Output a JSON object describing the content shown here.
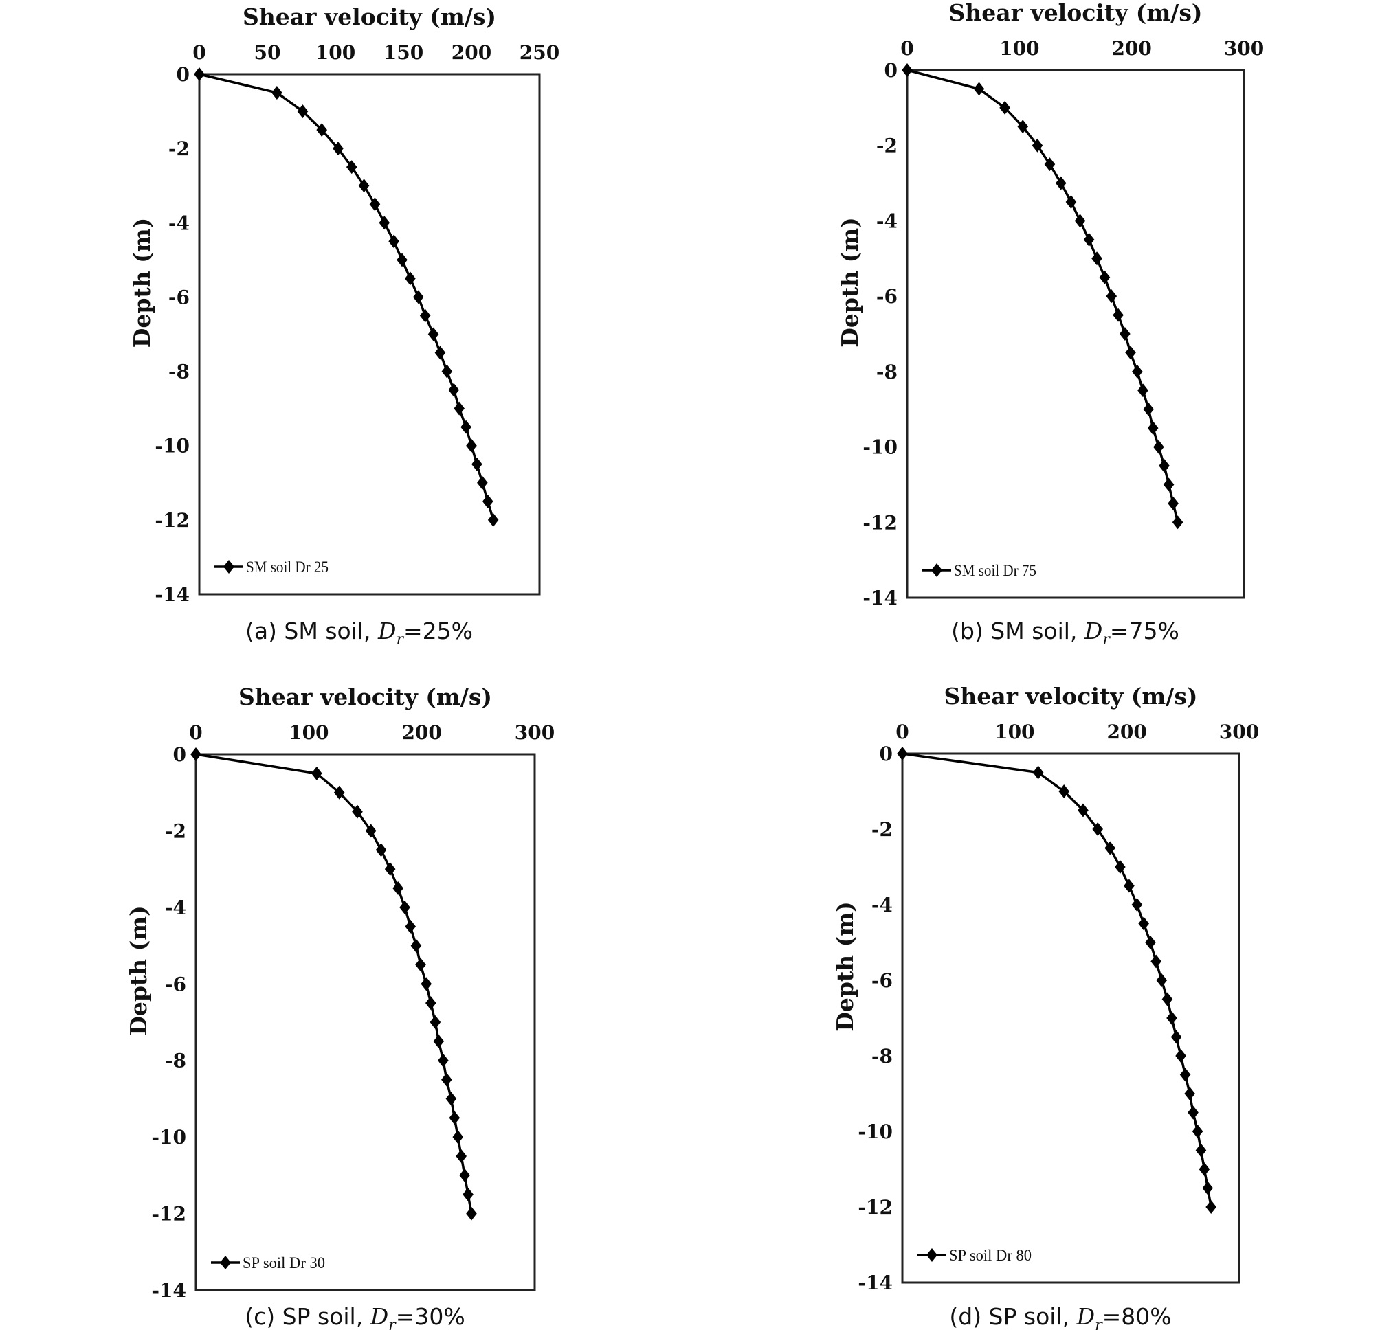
{
  "chart_data": [
    {
      "type": "line",
      "title": "",
      "xlabel": "Shear velocity (m/s)",
      "ylabel": "Depth (m)",
      "xlim": [
        0,
        250
      ],
      "ylim": [
        -14,
        0
      ],
      "xticks": [
        0,
        50,
        100,
        150,
        200,
        250
      ],
      "yticks": [
        0,
        -2,
        -4,
        -6,
        -8,
        -10,
        -12,
        -14
      ],
      "legend_position": "bottom-left",
      "grid": false,
      "caption": {
        "prefix": "(a) SM soil,",
        "var": "D",
        "sub": "r",
        "suffix": "=25%"
      },
      "series": [
        {
          "name": "SM soil Dr 25",
          "marker": "diamond",
          "color": "#000000",
          "x": [
            0,
            57,
            76,
            90,
            102,
            112,
            121,
            129,
            136,
            143,
            149,
            155,
            161,
            166,
            172,
            177,
            182,
            187,
            191,
            196,
            200,
            204,
            208,
            212,
            216
          ],
          "y": [
            0,
            -0.5,
            -1,
            -1.5,
            -2,
            -2.5,
            -3,
            -3.5,
            -4,
            -4.5,
            -5,
            -5.5,
            -6,
            -6.5,
            -7,
            -7.5,
            -8,
            -8.5,
            -9,
            -9.5,
            -10,
            -10.5,
            -11,
            -11.5,
            -12
          ]
        }
      ]
    },
    {
      "type": "line",
      "title": "",
      "xlabel": "Shear velocity (m/s)",
      "ylabel": "Depth (m)",
      "xlim": [
        0,
        300
      ],
      "ylim": [
        -14,
        0
      ],
      "xticks": [
        0,
        100,
        200,
        300
      ],
      "yticks": [
        0,
        -2,
        -4,
        -6,
        -8,
        -10,
        -12,
        -14
      ],
      "legend_position": "bottom-left",
      "grid": false,
      "caption": {
        "prefix": "(b) SM soil,",
        "var": "D",
        "sub": "r",
        "suffix": "=75%"
      },
      "series": [
        {
          "name": "SM soil Dr 75",
          "marker": "diamond",
          "color": "#000000",
          "x": [
            0,
            64,
            87,
            103,
            116,
            127,
            137,
            146,
            154,
            162,
            169,
            176,
            182,
            188,
            194,
            199,
            205,
            210,
            215,
            219,
            224,
            229,
            233,
            237,
            241
          ],
          "y": [
            0,
            -0.5,
            -1,
            -1.5,
            -2,
            -2.5,
            -3,
            -3.5,
            -4,
            -4.5,
            -5,
            -5.5,
            -6,
            -6.5,
            -7,
            -7.5,
            -8,
            -8.5,
            -9,
            -9.5,
            -10,
            -10.5,
            -11,
            -11.5,
            -12
          ]
        }
      ]
    },
    {
      "type": "line",
      "title": "",
      "xlabel": "Shear velocity (m/s)",
      "ylabel": "Depth (m)",
      "xlim": [
        0,
        300
      ],
      "ylim": [
        -14,
        0
      ],
      "xticks": [
        0,
        100,
        200,
        300
      ],
      "yticks": [
        0,
        -2,
        -4,
        -6,
        -8,
        -10,
        -12,
        -14
      ],
      "legend_position": "bottom-left",
      "grid": false,
      "caption": {
        "prefix": "(c) SP soil,",
        "var": "D",
        "sub": "r",
        "suffix": "=30%"
      },
      "series": [
        {
          "name": "SP soil Dr 30",
          "marker": "diamond",
          "color": "#000000",
          "x": [
            0,
            107,
            127,
            143,
            155,
            164,
            172,
            179,
            185,
            190,
            195,
            199,
            204,
            208,
            212,
            215,
            219,
            222,
            226,
            229,
            232,
            235,
            238,
            241,
            244
          ],
          "y": [
            0,
            -0.5,
            -1,
            -1.5,
            -2,
            -2.5,
            -3,
            -3.5,
            -4,
            -4.5,
            -5,
            -5.5,
            -6,
            -6.5,
            -7,
            -7.5,
            -8,
            -8.5,
            -9,
            -9.5,
            -10,
            -10.5,
            -11,
            -11.5,
            -12
          ]
        }
      ]
    },
    {
      "type": "line",
      "title": "",
      "xlabel": "Shear velocity (m/s)",
      "ylabel": "Depth (m)",
      "xlim": [
        0,
        300
      ],
      "ylim": [
        -14,
        0
      ],
      "xticks": [
        0,
        100,
        200,
        300
      ],
      "yticks": [
        0,
        -2,
        -4,
        -6,
        -8,
        -10,
        -12,
        -14
      ],
      "legend_position": "bottom-left",
      "grid": false,
      "caption": {
        "prefix": "(d) SP soil,",
        "var": "D",
        "sub": "r",
        "suffix": "=80%"
      },
      "series": [
        {
          "name": "SP soil Dr 80",
          "marker": "diamond",
          "color": "#000000",
          "x": [
            0,
            121,
            144,
            161,
            174,
            185,
            194,
            202,
            209,
            215,
            221,
            226,
            231,
            236,
            240,
            244,
            248,
            252,
            256,
            259,
            263,
            266,
            269,
            272,
            275
          ],
          "y": [
            0,
            -0.5,
            -1,
            -1.5,
            -2,
            -2.5,
            -3,
            -3.5,
            -4,
            -4.5,
            -5,
            -5.5,
            -6,
            -6.5,
            -7,
            -7.5,
            -8,
            -8.5,
            -9,
            -9.5,
            -10,
            -10.5,
            -11,
            -11.5,
            -12
          ]
        }
      ]
    }
  ]
}
